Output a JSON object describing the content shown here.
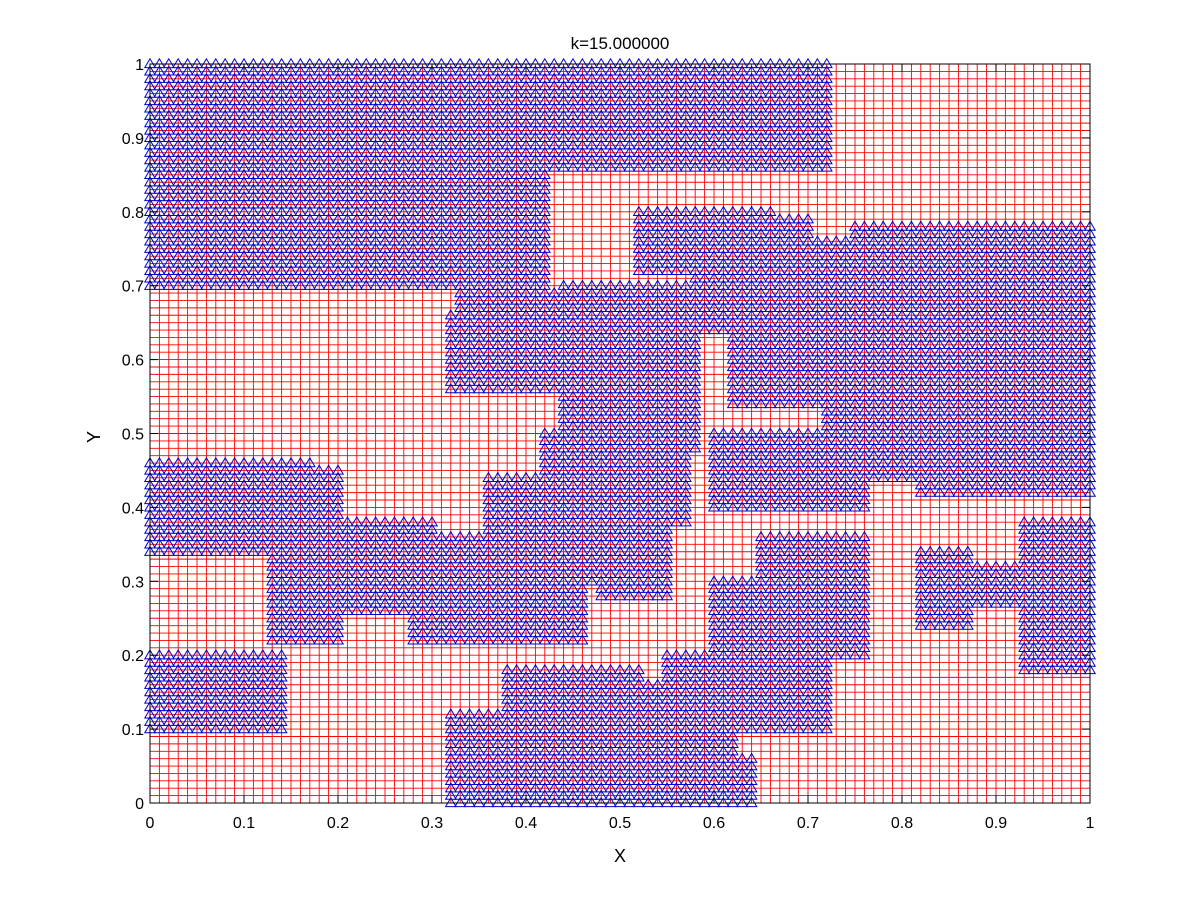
{
  "chart_data": {
    "type": "scatter",
    "title": "k=15.000000",
    "xlabel": "X",
    "ylabel": "Y",
    "xlim": [
      0,
      1
    ],
    "ylim": [
      0,
      1
    ],
    "xticks": [
      "0",
      "0.1",
      "0.2",
      "0.3",
      "0.4",
      "0.5",
      "0.6",
      "0.7",
      "0.8",
      "0.9",
      "1"
    ],
    "yticks": [
      "0",
      "0.1",
      "0.2",
      "0.3",
      "0.4",
      "0.5",
      "0.6",
      "0.7",
      "0.8",
      "0.9",
      "1"
    ],
    "grid": true,
    "grid_spacing": 0.01,
    "colors": {
      "grid": "#ff0000",
      "marker": "#0000cc",
      "axes": "#000000"
    },
    "marker": "triangle",
    "series": [
      {
        "marker_color": "#0000cc",
        "regions": [
          [
            0.0,
            0.17,
            0.34,
            0.46
          ],
          [
            0.0,
            0.42,
            0.7,
            1.0
          ],
          [
            0.42,
            0.64,
            0.86,
            1.0
          ],
          [
            0.0,
            0.14,
            0.1,
            0.2
          ],
          [
            0.32,
            0.45,
            0.0,
            0.12
          ],
          [
            0.38,
            0.52,
            0.07,
            0.18
          ],
          [
            0.45,
            0.62,
            0.0,
            0.16
          ],
          [
            0.55,
            0.66,
            0.12,
            0.2
          ],
          [
            0.58,
            0.64,
            0.0,
            0.06
          ],
          [
            0.6,
            0.72,
            0.1,
            0.3
          ],
          [
            0.65,
            0.76,
            0.2,
            0.36
          ],
          [
            0.13,
            0.2,
            0.22,
            0.45
          ],
          [
            0.18,
            0.3,
            0.26,
            0.38
          ],
          [
            0.28,
            0.46,
            0.22,
            0.36
          ],
          [
            0.36,
            0.52,
            0.3,
            0.44
          ],
          [
            0.48,
            0.55,
            0.28,
            0.42
          ],
          [
            0.32,
            0.43,
            0.56,
            0.66
          ],
          [
            0.33,
            0.46,
            0.56,
            0.69
          ],
          [
            0.42,
            0.57,
            0.38,
            0.5
          ],
          [
            0.44,
            0.58,
            0.48,
            0.7
          ],
          [
            0.58,
            0.7,
            0.64,
            0.79
          ],
          [
            0.52,
            0.66,
            0.72,
            0.8
          ],
          [
            0.62,
            0.78,
            0.54,
            0.76
          ],
          [
            0.75,
            1.0,
            0.52,
            0.78
          ],
          [
            0.82,
            1.0,
            0.42,
            0.52
          ],
          [
            0.6,
            0.76,
            0.4,
            0.5
          ],
          [
            0.72,
            0.82,
            0.44,
            0.56
          ],
          [
            0.64,
            0.72,
            0.9,
            1.0
          ],
          [
            0.65,
            0.72,
            0.86,
            0.9
          ],
          [
            0.93,
            1.0,
            0.18,
            0.38
          ],
          [
            0.86,
            0.92,
            0.27,
            0.32
          ],
          [
            0.82,
            0.87,
            0.24,
            0.34
          ]
        ]
      }
    ]
  }
}
